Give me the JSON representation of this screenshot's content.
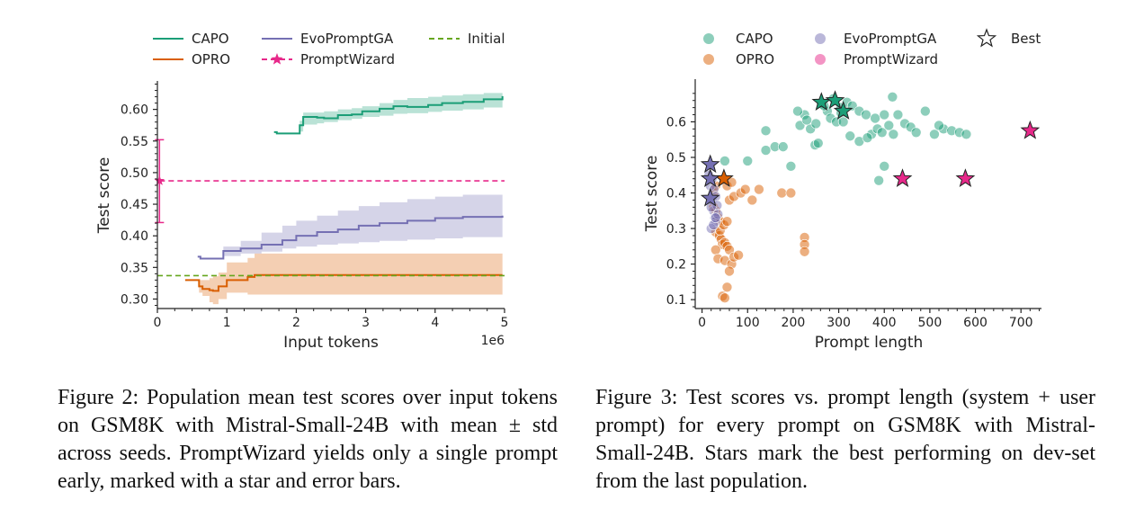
{
  "colors": {
    "capo": "#1b9e77",
    "opro": "#d95f02",
    "evo": "#7570b3",
    "pw": "#e7298a",
    "initial": "#66a61e",
    "axis": "#222222"
  },
  "fig2": {
    "caption": "Figure 2: Population mean test scores over input tokens on GSM8K with Mistral-Small-24B with mean ± std across seeds. PromptWizard yields only a single prompt early, marked with a star and error bars.",
    "legend": {
      "capo": "CAPO",
      "evo": "EvoPromptGA",
      "initial": "Initial",
      "opro": "OPRO",
      "pw": "PromptWizard"
    }
  },
  "fig3": {
    "caption": "Figure 3: Test scores vs. prompt length (system + user prompt) for every prompt on GSM8K with Mistral-Small-24B. Stars mark the best performing on dev-set from the last population.",
    "legend": {
      "capo": "CAPO",
      "evo": "EvoPromptGA",
      "best": "Best",
      "opro": "OPRO",
      "pw": "PromptWizard"
    }
  },
  "chart_data": [
    {
      "type": "line",
      "title": "",
      "xlabel": "Input tokens",
      "ylabel": "Test score",
      "x_offset_text": "1e6",
      "xlim": [
        0,
        5
      ],
      "ylim": [
        0.285,
        0.645
      ],
      "xticks": [
        0,
        1,
        2,
        3,
        4,
        5
      ],
      "yticks": [
        0.3,
        0.35,
        0.4,
        0.45,
        0.5,
        0.55,
        0.6
      ],
      "ytick_labels": [
        "0.30",
        "0.35",
        "0.40",
        "0.45",
        "0.50",
        "0.55",
        "0.60"
      ],
      "grid": false,
      "series": [
        {
          "name": "CAPO",
          "x": [
            1.68,
            1.72,
            2.02,
            2.05,
            2.1,
            2.3,
            2.4,
            2.6,
            2.8,
            2.95,
            3.2,
            3.4,
            3.6,
            3.9,
            4.1,
            4.4,
            4.7,
            4.97
          ],
          "y": [
            0.564,
            0.562,
            0.562,
            0.575,
            0.588,
            0.587,
            0.586,
            0.591,
            0.592,
            0.597,
            0.601,
            0.605,
            0.604,
            0.607,
            0.61,
            0.612,
            0.616,
            0.621
          ],
          "lower": [
            0.564,
            0.562,
            0.562,
            0.565,
            0.576,
            0.578,
            0.58,
            0.583,
            0.585,
            0.588,
            0.59,
            0.593,
            0.594,
            0.596,
            0.598,
            0.6,
            0.603,
            0.606
          ],
          "upper": [
            0.564,
            0.562,
            0.562,
            0.582,
            0.595,
            0.595,
            0.597,
            0.6,
            0.602,
            0.605,
            0.61,
            0.615,
            0.618,
            0.62,
            0.622,
            0.624,
            0.626,
            0.627
          ]
        },
        {
          "name": "EvoPromptGA",
          "x": [
            0.58,
            0.62,
            0.9,
            0.95,
            1.2,
            1.5,
            1.8,
            2.0,
            2.3,
            2.6,
            2.9,
            3.2,
            3.6,
            4.0,
            4.4,
            4.97
          ],
          "y": [
            0.367,
            0.364,
            0.364,
            0.376,
            0.38,
            0.386,
            0.393,
            0.4,
            0.406,
            0.41,
            0.416,
            0.42,
            0.424,
            0.428,
            0.43,
            0.432
          ],
          "lower": [
            0.367,
            0.364,
            0.363,
            0.368,
            0.372,
            0.375,
            0.38,
            0.383,
            0.386,
            0.388,
            0.39,
            0.392,
            0.394,
            0.396,
            0.398,
            0.398
          ],
          "upper": [
            0.367,
            0.364,
            0.365,
            0.383,
            0.392,
            0.405,
            0.416,
            0.424,
            0.432,
            0.44,
            0.447,
            0.453,
            0.458,
            0.462,
            0.465,
            0.467
          ]
        },
        {
          "name": "OPRO",
          "x": [
            0.4,
            0.5,
            0.6,
            0.65,
            0.75,
            0.8,
            0.88,
            1.0,
            1.3,
            1.4,
            1.6,
            2.0,
            2.5,
            3.0,
            3.5,
            4.0,
            4.5,
            4.97
          ],
          "y": [
            0.33,
            0.33,
            0.32,
            0.316,
            0.314,
            0.313,
            0.32,
            0.33,
            0.335,
            0.338,
            0.338,
            0.338,
            0.338,
            0.338,
            0.338,
            0.338,
            0.338,
            0.338
          ],
          "lower": [
            0.33,
            0.33,
            0.31,
            0.305,
            0.295,
            0.292,
            0.3,
            0.31,
            0.307,
            0.307,
            0.307,
            0.307,
            0.307,
            0.307,
            0.307,
            0.307,
            0.307,
            0.307
          ],
          "upper": [
            0.33,
            0.33,
            0.33,
            0.33,
            0.333,
            0.336,
            0.342,
            0.358,
            0.365,
            0.372,
            0.372,
            0.372,
            0.372,
            0.372,
            0.372,
            0.372,
            0.372,
            0.372
          ]
        },
        {
          "name": "PromptWizard",
          "x": [
            0.03,
            5.0
          ],
          "y": [
            0.487,
            0.487
          ],
          "marker": "star",
          "marker_x": 0.03,
          "marker_y": 0.487,
          "error": [
            0.421,
            0.552
          ]
        },
        {
          "name": "Initial",
          "x": [
            0,
            5
          ],
          "y": [
            0.337,
            0.337
          ],
          "style": "dashed"
        }
      ],
      "legend": "top, 3 columns"
    },
    {
      "type": "scatter",
      "title": "",
      "xlabel": "Prompt length",
      "ylabel": "Test score",
      "xlim": [
        -15,
        745
      ],
      "ylim": [
        0.075,
        0.72
      ],
      "xticks": [
        0,
        100,
        200,
        300,
        400,
        500,
        600,
        700
      ],
      "yticks": [
        0.1,
        0.2,
        0.3,
        0.4,
        0.5,
        0.6
      ],
      "ytick_labels": [
        "0.1",
        "0.2",
        "0.3",
        "0.4",
        "0.5",
        "0.6"
      ],
      "grid": false,
      "series": [
        {
          "name": "CAPO",
          "points": [
            [
              215,
              0.59
            ],
            [
              225,
              0.62
            ],
            [
              238,
              0.58
            ],
            [
              250,
              0.595
            ],
            [
              262,
              0.65
            ],
            [
              275,
              0.63
            ],
            [
              282,
              0.61
            ],
            [
              295,
              0.6
            ],
            [
              305,
              0.64
            ],
            [
              318,
              0.655
            ],
            [
              330,
              0.645
            ],
            [
              345,
              0.63
            ],
            [
              360,
              0.62
            ],
            [
              372,
              0.565
            ],
            [
              385,
              0.58
            ],
            [
              395,
              0.57
            ],
            [
              410,
              0.59
            ],
            [
              418,
              0.67
            ],
            [
              430,
              0.62
            ],
            [
              445,
              0.595
            ],
            [
              458,
              0.585
            ],
            [
              470,
              0.57
            ],
            [
              490,
              0.63
            ],
            [
              510,
              0.565
            ],
            [
              530,
              0.58
            ],
            [
              548,
              0.575
            ],
            [
              565,
              0.57
            ],
            [
              580,
              0.565
            ],
            [
              520,
              0.59
            ],
            [
              140,
              0.575
            ],
            [
              160,
              0.53
            ],
            [
              178,
              0.53
            ],
            [
              195,
              0.475
            ],
            [
              140,
              0.52
            ],
            [
              100,
              0.49
            ],
            [
              50,
              0.49
            ],
            [
              210,
              0.63
            ],
            [
              230,
              0.605
            ],
            [
              248,
              0.535
            ],
            [
              268,
              0.645
            ],
            [
              288,
              0.665
            ],
            [
              305,
              0.625
            ],
            [
              325,
              0.56
            ],
            [
              345,
              0.545
            ],
            [
              363,
              0.555
            ],
            [
              380,
              0.61
            ],
            [
              400,
              0.62
            ],
            [
              388,
              0.435
            ],
            [
              400,
              0.475
            ],
            [
              420,
              0.565
            ],
            [
              255,
              0.54
            ],
            [
              310,
              0.6
            ]
          ]
        },
        {
          "name": "OPRO",
          "points": [
            [
              25,
              0.36
            ],
            [
              30,
              0.35
            ],
            [
              35,
              0.33
            ],
            [
              40,
              0.32
            ],
            [
              30,
              0.29
            ],
            [
              38,
              0.28
            ],
            [
              42,
              0.27
            ],
            [
              45,
              0.255
            ],
            [
              30,
              0.24
            ],
            [
              50,
              0.26
            ],
            [
              55,
              0.25
            ],
            [
              60,
              0.24
            ],
            [
              35,
              0.215
            ],
            [
              50,
              0.21
            ],
            [
              65,
              0.2
            ],
            [
              70,
              0.22
            ],
            [
              80,
              0.225
            ],
            [
              60,
              0.18
            ],
            [
              55,
              0.135
            ],
            [
              45,
              0.11
            ],
            [
              50,
              0.105
            ],
            [
              60,
              0.38
            ],
            [
              70,
              0.39
            ],
            [
              85,
              0.4
            ],
            [
              95,
              0.41
            ],
            [
              110,
              0.38
            ],
            [
              125,
              0.41
            ],
            [
              55,
              0.42
            ],
            [
              65,
              0.43
            ],
            [
              175,
              0.4
            ],
            [
              195,
              0.4
            ],
            [
              225,
              0.275
            ],
            [
              225,
              0.255
            ],
            [
              225,
              0.235
            ],
            [
              40,
              0.295
            ],
            [
              48,
              0.31
            ],
            [
              55,
              0.32
            ],
            [
              25,
              0.4
            ],
            [
              30,
              0.42
            ]
          ]
        },
        {
          "name": "EvoPromptGA",
          "points": [
            [
              18,
              0.42
            ],
            [
              22,
              0.38
            ],
            [
              25,
              0.35
            ],
            [
              28,
              0.33
            ],
            [
              30,
              0.32
            ],
            [
              20,
              0.3
            ],
            [
              15,
              0.45
            ],
            [
              22,
              0.44
            ],
            [
              26,
              0.41
            ],
            [
              30,
              0.39
            ],
            [
              33,
              0.365
            ],
            [
              35,
              0.34
            ],
            [
              20,
              0.36
            ],
            [
              25,
              0.31
            ],
            [
              30,
              0.33
            ]
          ]
        },
        {
          "name": "PromptWizard",
          "points": []
        },
        {
          "name": "Best",
          "stars": [
            {
              "series": "CAPO",
              "x": 262,
              "y": 0.655
            },
            {
              "series": "CAPO",
              "x": 292,
              "y": 0.66
            },
            {
              "series": "CAPO",
              "x": 310,
              "y": 0.63
            },
            {
              "series": "OPRO",
              "x": 48,
              "y": 0.44
            },
            {
              "series": "EvoPromptGA",
              "x": 18,
              "y": 0.48
            },
            {
              "series": "EvoPromptGA",
              "x": 18,
              "y": 0.44
            },
            {
              "series": "EvoPromptGA",
              "x": 18,
              "y": 0.385
            },
            {
              "series": "PromptWizard",
              "x": 440,
              "y": 0.44
            },
            {
              "series": "PromptWizard",
              "x": 578,
              "y": 0.44
            },
            {
              "series": "PromptWizard",
              "x": 720,
              "y": 0.575
            }
          ]
        }
      ],
      "legend": "top, 3 columns"
    }
  ]
}
